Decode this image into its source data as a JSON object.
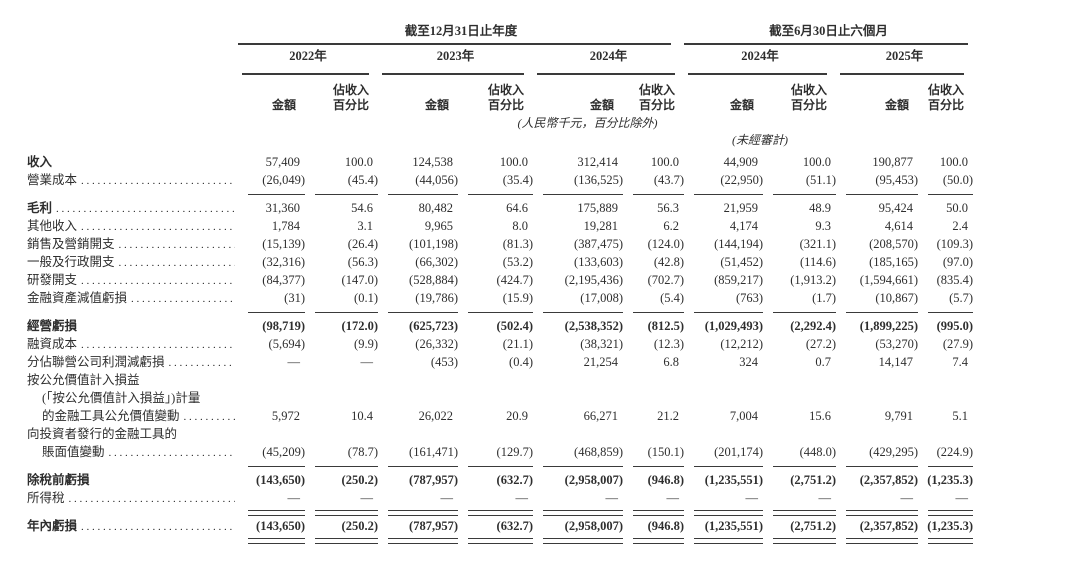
{
  "page": {
    "background": "#ffffff",
    "text_color": "#2e2e2e",
    "rule_color": "#3a3a3a"
  },
  "table": {
    "period_groups": [
      {
        "label": "截至12月31日止年度",
        "years": [
          "2022年",
          "2023年",
          "2024年"
        ]
      },
      {
        "label": "截至6月30日止六個月",
        "years": [
          "2024年",
          "2025年"
        ]
      }
    ],
    "column_subheaders": {
      "amount": "金額",
      "pct_line1": "佔收入",
      "pct_line2": "百分比"
    },
    "unit_note": "(人民幣千元，百分比除外)",
    "unaudited_note": "(未經審計)",
    "rows": [
      {
        "label": "收入",
        "label_bold": true,
        "values_bold": false,
        "dots": false,
        "rule_after": null,
        "values": [
          "57,409",
          "100.0",
          "124,538",
          "100.0",
          "312,414",
          "100.0",
          "44,909",
          "100.0",
          "190,877",
          "100.0"
        ]
      },
      {
        "label": "營業成本",
        "label_bold": false,
        "values_bold": false,
        "dots": true,
        "rule_after": "single",
        "values": [
          "(26,049)",
          "(45.4)",
          "(44,056)",
          "(35.4)",
          "(136,525)",
          "(43.7)",
          "(22,950)",
          "(51.1)",
          "(95,453)",
          "(50.0)"
        ]
      },
      {
        "label": "毛利",
        "label_bold": true,
        "values_bold": false,
        "dots": true,
        "rule_after": null,
        "values": [
          "31,360",
          "54.6",
          "80,482",
          "64.6",
          "175,889",
          "56.3",
          "21,959",
          "48.9",
          "95,424",
          "50.0"
        ]
      },
      {
        "label": "其他收入",
        "label_bold": false,
        "values_bold": false,
        "dots": true,
        "rule_after": null,
        "values": [
          "1,784",
          "3.1",
          "9,965",
          "8.0",
          "19,281",
          "6.2",
          "4,174",
          "9.3",
          "4,614",
          "2.4"
        ]
      },
      {
        "label": "銷售及營銷開支",
        "label_bold": false,
        "values_bold": false,
        "dots": true,
        "rule_after": null,
        "values": [
          "(15,139)",
          "(26.4)",
          "(101,198)",
          "(81.3)",
          "(387,475)",
          "(124.0)",
          "(144,194)",
          "(321.1)",
          "(208,570)",
          "(109.3)"
        ]
      },
      {
        "label": "一般及行政開支",
        "label_bold": false,
        "values_bold": false,
        "dots": true,
        "rule_after": null,
        "values": [
          "(32,316)",
          "(56.3)",
          "(66,302)",
          "(53.2)",
          "(133,603)",
          "(42.8)",
          "(51,452)",
          "(114.6)",
          "(185,165)",
          "(97.0)"
        ]
      },
      {
        "label": "研發開支",
        "label_bold": false,
        "values_bold": false,
        "dots": true,
        "rule_after": null,
        "values": [
          "(84,377)",
          "(147.0)",
          "(528,884)",
          "(424.7)",
          "(2,195,436)",
          "(702.7)",
          "(859,217)",
          "(1,913.2)",
          "(1,594,661)",
          "(835.4)"
        ]
      },
      {
        "label": "金融資產減值虧損",
        "label_bold": false,
        "values_bold": false,
        "dots": true,
        "rule_after": "single",
        "values": [
          "(31)",
          "(0.1)",
          "(19,786)",
          "(15.9)",
          "(17,008)",
          "(5.4)",
          "(763)",
          "(1.7)",
          "(10,867)",
          "(5.7)"
        ]
      },
      {
        "label": "經營虧損",
        "label_bold": true,
        "values_bold": true,
        "dots": false,
        "rule_after": null,
        "values": [
          "(98,719)",
          "(172.0)",
          "(625,723)",
          "(502.4)",
          "(2,538,352)",
          "(812.5)",
          "(1,029,493)",
          "(2,292.4)",
          "(1,899,225)",
          "(995.0)"
        ]
      },
      {
        "label": "融資成本",
        "label_bold": false,
        "values_bold": false,
        "dots": true,
        "rule_after": null,
        "values": [
          "(5,694)",
          "(9.9)",
          "(26,332)",
          "(21.1)",
          "(38,321)",
          "(12.3)",
          "(12,212)",
          "(27.2)",
          "(53,270)",
          "(27.9)"
        ]
      },
      {
        "label": "分佔聯營公司利潤減虧損",
        "label_bold": false,
        "values_bold": false,
        "dots": true,
        "rule_after": null,
        "values": [
          "—",
          "—",
          "(453)",
          "(0.4)",
          "21,254",
          "6.8",
          "324",
          "0.7",
          "14,147",
          "7.4"
        ]
      },
      {
        "label": "按公允價值計入損益（「按公允價值計入損益」）計量的金融工具公允價值變動",
        "lines": [
          "按公允價值計入損益",
          "(「按公允價值計入損益」)計量",
          "的金融工具公允價值變動"
        ],
        "label_bold": false,
        "values_bold": false,
        "dots": true,
        "rule_after": null,
        "values": [
          "5,972",
          "10.4",
          "26,022",
          "20.9",
          "66,271",
          "21.2",
          "7,004",
          "15.6",
          "9,791",
          "5.1"
        ]
      },
      {
        "label": "向投資者發行的金融工具的賬面值變動",
        "lines": [
          "向投資者發行的金融工具的",
          "賬面值變動"
        ],
        "label_bold": false,
        "values_bold": false,
        "dots": true,
        "rule_after": "single",
        "values": [
          "(45,209)",
          "(78.7)",
          "(161,471)",
          "(129.7)",
          "(468,859)",
          "(150.1)",
          "(201,174)",
          "(448.0)",
          "(429,295)",
          "(224.9)"
        ]
      },
      {
        "label": "除稅前虧損",
        "label_bold": true,
        "values_bold": true,
        "dots": false,
        "rule_after": null,
        "values": [
          "(143,650)",
          "(250.2)",
          "(787,957)",
          "(632.7)",
          "(2,958,007)",
          "(946.8)",
          "(1,235,551)",
          "(2,751.2)",
          "(2,357,852)",
          "(1,235.3)"
        ]
      },
      {
        "label": "所得稅",
        "label_bold": false,
        "values_bold": false,
        "dots": true,
        "rule_after": "double",
        "values": [
          "—",
          "—",
          "—",
          "—",
          "—",
          "—",
          "—",
          "—",
          "—",
          "—"
        ]
      },
      {
        "label": "年內虧損",
        "label_bold": true,
        "values_bold": true,
        "dots": true,
        "rule_after": "double",
        "values": [
          "(143,650)",
          "(250.2)",
          "(787,957)",
          "(632.7)",
          "(2,958,007)",
          "(946.8)",
          "(1,235,551)",
          "(2,751.2)",
          "(2,357,852)",
          "(1,235.3)"
        ]
      }
    ]
  }
}
